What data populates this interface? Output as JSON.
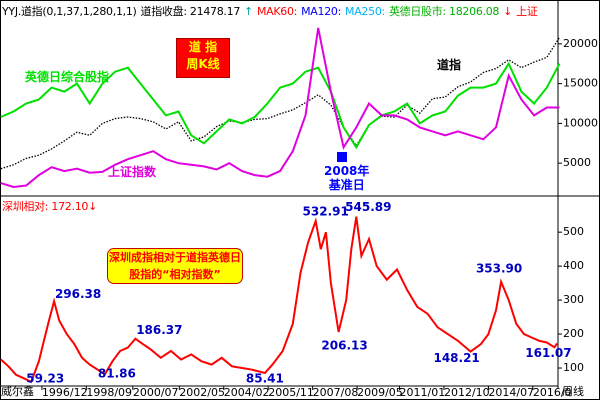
{
  "chart_data": [
    {
      "type": "line",
      "header": [
        {
          "text": "YYJ.道指(0,1,37,1,280,1,1)",
          "color": "#000000"
        },
        {
          "text": "道指收盘: 21478.17",
          "color": "#000000"
        },
        {
          "text": "↑",
          "color": "#00a0a0"
        },
        {
          "text": "MAK60:",
          "color": "#ff0000"
        },
        {
          "text": "MA120:",
          "color": "#0000ff"
        },
        {
          "text": "MA250:",
          "color": "#00b0ff"
        },
        {
          "text": "英德日股市: 18206.08",
          "color": "#00b000"
        },
        {
          "text": "↓",
          "color": "#ff0000"
        },
        {
          "text": "上证",
          "color": "#ff0000"
        }
      ],
      "title_box": [
        "道 指",
        "周K线"
      ],
      "base_date_label": [
        "2008年",
        "基准日"
      ],
      "xlim": [
        1995.27,
        2017.24
      ],
      "ylim": [
        1000,
        23500
      ],
      "yticks": [
        5000,
        10000,
        15000,
        20000
      ],
      "x": [
        1995.3,
        1995.8,
        1996.3,
        1996.8,
        1997.3,
        1997.8,
        1998.3,
        1998.8,
        1999.3,
        1999.8,
        2000.3,
        2000.8,
        2001.3,
        2001.8,
        2002.3,
        2002.8,
        2003.3,
        2003.8,
        2004.3,
        2004.8,
        2005.3,
        2005.8,
        2006.3,
        2006.8,
        2007.3,
        2007.8,
        2008.3,
        2008.8,
        2009.3,
        2009.8,
        2010.3,
        2010.8,
        2011.3,
        2011.8,
        2012.3,
        2012.8,
        2013.3,
        2013.8,
        2014.3,
        2014.8,
        2015.3,
        2015.8,
        2016.3,
        2016.8,
        2017.3
      ],
      "series": [
        {
          "name": "道指",
          "color": "#000000",
          "dashed": true,
          "values": [
            4300,
            4800,
            5600,
            6000,
            6800,
            7800,
            8900,
            8500,
            10000,
            10600,
            10800,
            10600,
            10200,
            9300,
            10200,
            7800,
            8300,
            9600,
            10300,
            10100,
            10500,
            10600,
            11200,
            11700,
            12600,
            13600,
            12300,
            9500,
            7200,
            9800,
            10900,
            10800,
            12300,
            11300,
            13100,
            13300,
            14600,
            15200,
            16400,
            16900,
            18000,
            17000,
            17700,
            18300,
            20800
          ]
        },
        {
          "name": "英德日综合股指",
          "color": "#00e000",
          "dashed": false,
          "values": [
            10800,
            11500,
            12500,
            13000,
            14500,
            14000,
            15000,
            12500,
            15000,
            16500,
            17000,
            15000,
            13000,
            11000,
            11500,
            8500,
            7500,
            9000,
            10500,
            10000,
            10800,
            12500,
            14500,
            15000,
            16500,
            17000,
            14000,
            9500,
            7000,
            9800,
            11000,
            11500,
            12500,
            10000,
            11000,
            11500,
            13500,
            14500,
            14500,
            15000,
            17500,
            14000,
            12500,
            14500,
            17500
          ]
        },
        {
          "name": "上证指数",
          "color": "#e000e0",
          "dashed": false,
          "values": [
            2500,
            2000,
            2200,
            3500,
            4500,
            4000,
            4300,
            3800,
            3900,
            4800,
            5500,
            6000,
            6500,
            5500,
            5000,
            4800,
            4600,
            4200,
            5000,
            4000,
            3500,
            3300,
            4000,
            6500,
            11000,
            22000,
            14000,
            7000,
            9500,
            12500,
            11000,
            11000,
            10500,
            9500,
            9000,
            8500,
            9000,
            8500,
            8000,
            9500,
            16000,
            13000,
            11000,
            12000,
            12000
          ]
        }
      ]
    },
    {
      "type": "line",
      "header": "深圳相对: 172.10↓",
      "note_box": "深圳成指相对于道指英德日股指的“相对指数”",
      "corner_label": "威尔鑫",
      "period": "周线",
      "xlim": [
        1995.27,
        2017.24
      ],
      "ylim": [
        50,
        580
      ],
      "yticks": [
        100,
        200,
        300,
        400,
        500
      ],
      "xticks": [
        {
          "value": 1996.92,
          "label": "1996/12"
        },
        {
          "value": 1998.67,
          "label": "1998/09"
        },
        {
          "value": 2000.5,
          "label": "2000/07"
        },
        {
          "value": 2002.33,
          "label": "2002/05"
        },
        {
          "value": 2004.08,
          "label": "2004/02"
        },
        {
          "value": 2005.83,
          "label": "2005/11"
        },
        {
          "value": 2007.58,
          "label": "2007/08"
        },
        {
          "value": 2009.33,
          "label": "2009/05"
        },
        {
          "value": 2011.0,
          "label": "2011/01"
        },
        {
          "value": 2012.75,
          "label": "2012/10"
        },
        {
          "value": 2014.5,
          "label": "2014/07"
        },
        {
          "value": 2016.25,
          "label": "2016/0"
        }
      ],
      "x": [
        1995.3,
        1995.6,
        1995.9,
        1996.2,
        1996.5,
        1996.8,
        1997.0,
        1997.2,
        1997.4,
        1997.6,
        1997.9,
        1998.2,
        1998.5,
        1998.8,
        1999.4,
        1999.7,
        2000.0,
        2000.3,
        2000.6,
        2000.9,
        2001.2,
        2001.6,
        2002.0,
        2002.4,
        2002.8,
        2003.2,
        2003.6,
        2004.0,
        2004.4,
        2004.8,
        2005.2,
        2005.7,
        2006.0,
        2006.4,
        2006.8,
        2007.1,
        2007.4,
        2007.7,
        2007.9,
        2008.1,
        2008.3,
        2008.6,
        2008.9,
        2009.1,
        2009.3,
        2009.5,
        2009.8,
        2010.1,
        2010.5,
        2010.9,
        2011.3,
        2011.7,
        2012.1,
        2012.5,
        2012.9,
        2013.3,
        2013.8,
        2014.2,
        2014.5,
        2014.8,
        2015.0,
        2015.3,
        2015.6,
        2015.9,
        2016.2,
        2016.5,
        2016.8,
        2017.1,
        2017.2
      ],
      "series": [
        {
          "color": "#ff0000",
          "dashed": false,
          "values": [
            125,
            105,
            80,
            70,
            59.23,
            120,
            180,
            240,
            296.38,
            240,
            200,
            170,
            130,
            110,
            81.86,
            120,
            150,
            160,
            186.37,
            170,
            155,
            130,
            150,
            125,
            140,
            120,
            110,
            130,
            105,
            100,
            95,
            85.41,
            110,
            150,
            230,
            380,
            470,
            532.91,
            450,
            500,
            350,
            206.13,
            300,
            450,
            545.89,
            430,
            480,
            400,
            360,
            390,
            330,
            280,
            260,
            220,
            200,
            180,
            148.21,
            170,
            200,
            270,
            353.9,
            300,
            230,
            200,
            190,
            180,
            175,
            161.07,
            172.1
          ]
        }
      ],
      "value_annotations": [
        {
          "x": 1996.5,
          "value": 59.23
        },
        {
          "x": 1997.4,
          "value": 296.38
        },
        {
          "x": 1999.4,
          "value": 81.86
        },
        {
          "x": 2000.6,
          "value": 186.37
        },
        {
          "x": 2005.7,
          "value": 85.41
        },
        {
          "x": 2007.7,
          "value": 532.91
        },
        {
          "x": 2008.6,
          "value": 206.13
        },
        {
          "x": 2009.3,
          "value": 545.89
        },
        {
          "x": 2013.8,
          "value": 148.21
        },
        {
          "x": 2015.0,
          "value": 353.9,
          "label": "353.90"
        },
        {
          "x": 2017.1,
          "value": 161.07
        }
      ]
    }
  ]
}
